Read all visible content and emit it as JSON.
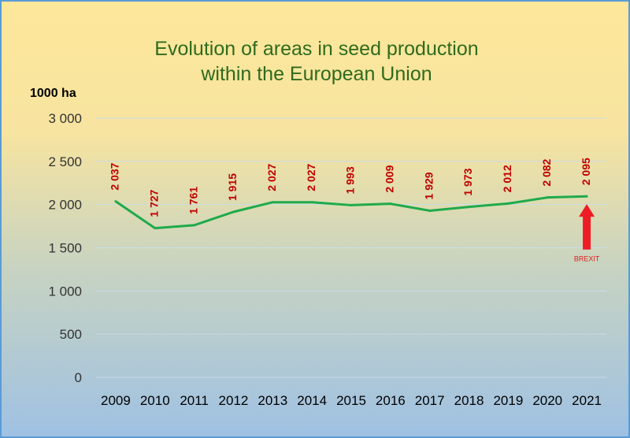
{
  "chart_data": {
    "type": "line",
    "title_lines": [
      "Evolution of areas in seed production",
      "within the European Union"
    ],
    "ylabel": "1000 ha",
    "categories": [
      "2009",
      "2010",
      "2011",
      "2012",
      "2013",
      "2014",
      "2015",
      "2016",
      "2017",
      "2018",
      "2019",
      "2020",
      "2021"
    ],
    "values": [
      2037,
      1727,
      1761,
      1915,
      2027,
      2027,
      1993,
      2009,
      1929,
      1973,
      2012,
      2082,
      2095
    ],
    "data_labels": [
      "2 037",
      "1 727",
      "1 761",
      "1 915",
      "2 027",
      "2 027",
      "1 993",
      "2 009",
      "1 929",
      "1 973",
      "2 012",
      "2 082",
      "2 095"
    ],
    "yticks": [
      0,
      500,
      1000,
      1500,
      2000,
      2500,
      3000
    ],
    "ytick_labels": [
      "0",
      "500",
      "1 000",
      "1 500",
      "2 000",
      "2 500",
      "3 000"
    ],
    "ylim": [
      0,
      3000
    ],
    "grid": true,
    "legend": "none",
    "annotation": {
      "text": "BREXIT",
      "category": "2021",
      "arrow_color": "#ee1c25"
    },
    "colors": {
      "line": "#1faa4a",
      "data_label": "#c00000",
      "title": "#2e6b1e"
    }
  }
}
